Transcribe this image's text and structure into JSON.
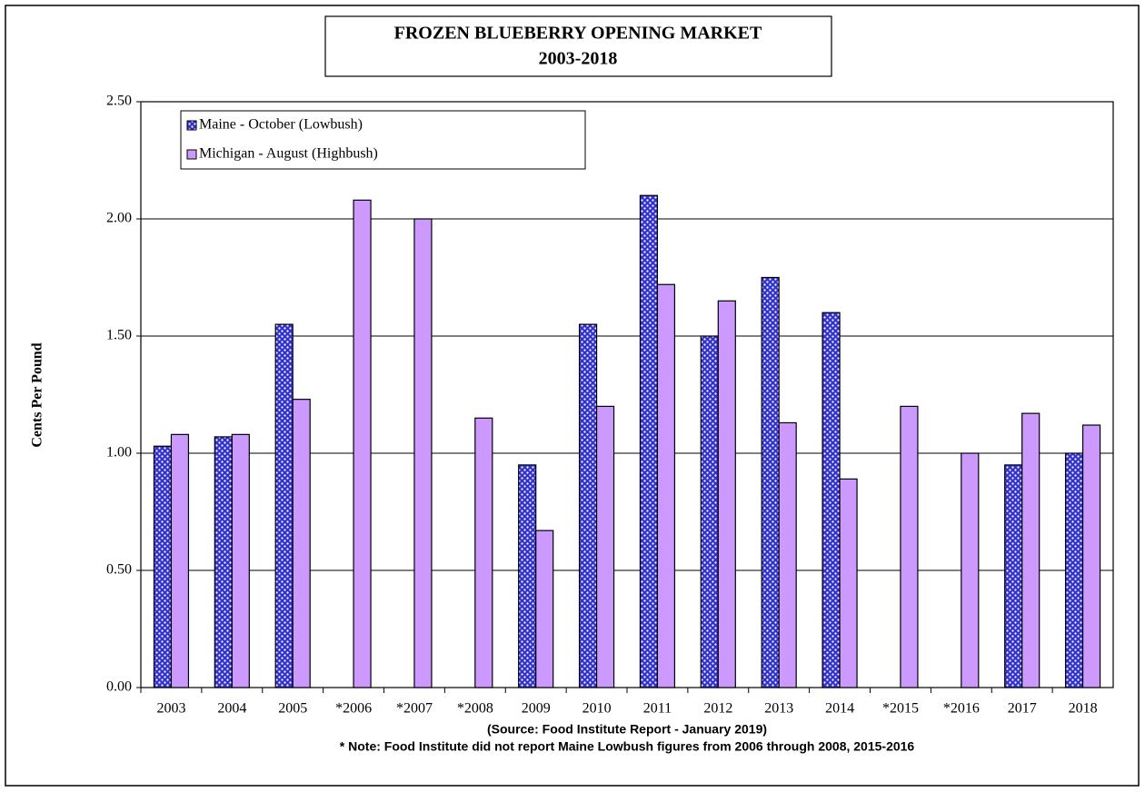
{
  "chart_data": {
    "type": "bar",
    "title": "FROZEN BLUEBERRY OPENING MARKET",
    "subtitle": "2003-2018",
    "y_label": "Cents Per Pound",
    "source": "(Source:  Food Institute Report - January 2019)",
    "note": "* Note: Food Institute did not report Maine Lowbush figures from 2006 through 2008, 2015-2016",
    "categories": [
      "2003",
      "2004",
      "2005",
      "*2006",
      "*2007",
      "*2008",
      "2009",
      "2010",
      "2011",
      "2012",
      "2013",
      "2014",
      "*2015",
      "*2016",
      "2017",
      "2018"
    ],
    "series": [
      {
        "name": "Maine - October (Lowbush)",
        "color": "#3333cc",
        "values": [
          1.03,
          1.07,
          1.55,
          null,
          null,
          null,
          0.95,
          1.55,
          2.1,
          1.5,
          1.75,
          1.6,
          null,
          null,
          0.95,
          1.0
        ]
      },
      {
        "name": "Michigan - August (Highbush)",
        "color": "#cc99ff",
        "values": [
          1.08,
          1.08,
          1.23,
          2.08,
          2.0,
          1.15,
          0.67,
          1.2,
          1.72,
          1.65,
          1.13,
          0.89,
          1.2,
          1.0,
          1.17,
          1.12
        ]
      }
    ],
    "ylim": [
      0,
      2.5
    ],
    "yticks": [
      {
        "value": 0,
        "label": "0.00"
      },
      {
        "value": 0.5,
        "label": "0.50"
      },
      {
        "value": 1,
        "label": "1.00"
      },
      {
        "value": 1.5,
        "label": "1.50"
      },
      {
        "value": 2,
        "label": "2.00"
      },
      {
        "value": 2.5,
        "label": "2.50"
      }
    ],
    "grid": true
  }
}
